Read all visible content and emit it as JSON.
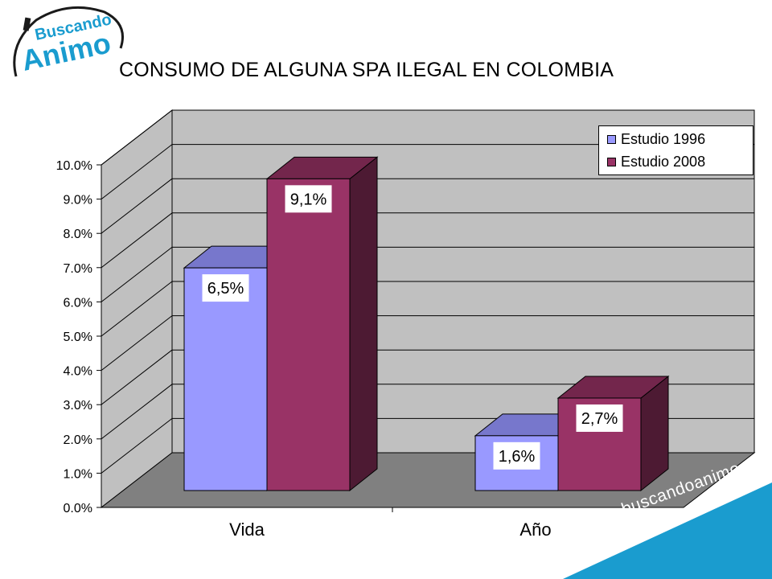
{
  "logo": {
    "line1": "Buscando",
    "line2": "Animo"
  },
  "website": "www.buscandoanimo.org",
  "colors": {
    "series1": "#9999ff",
    "series2": "#993366",
    "wall": "#c0c0c0",
    "floor": "#808080",
    "accent": "#1a9ccf"
  },
  "chart_data": {
    "type": "bar",
    "title": "CONSUMO DE ALGUNA SPA ILEGAL EN COLOMBIA",
    "categories": [
      "Vida",
      "Año"
    ],
    "series": [
      {
        "name": "Estudio 1996",
        "values": [
          6.5,
          1.6
        ],
        "labels": [
          "6,5%",
          "1,6%"
        ]
      },
      {
        "name": "Estudio 2008",
        "values": [
          9.1,
          2.7
        ],
        "labels": [
          "9,1%",
          "2,7%"
        ]
      }
    ],
    "yticks": [
      "0.0%",
      "1.0%",
      "2.0%",
      "3.0%",
      "4.0%",
      "5.0%",
      "6.0%",
      "7.0%",
      "8.0%",
      "9.0%",
      "10.0%"
    ],
    "ylim": [
      0,
      10
    ],
    "legend": "top-right",
    "grid": true
  }
}
